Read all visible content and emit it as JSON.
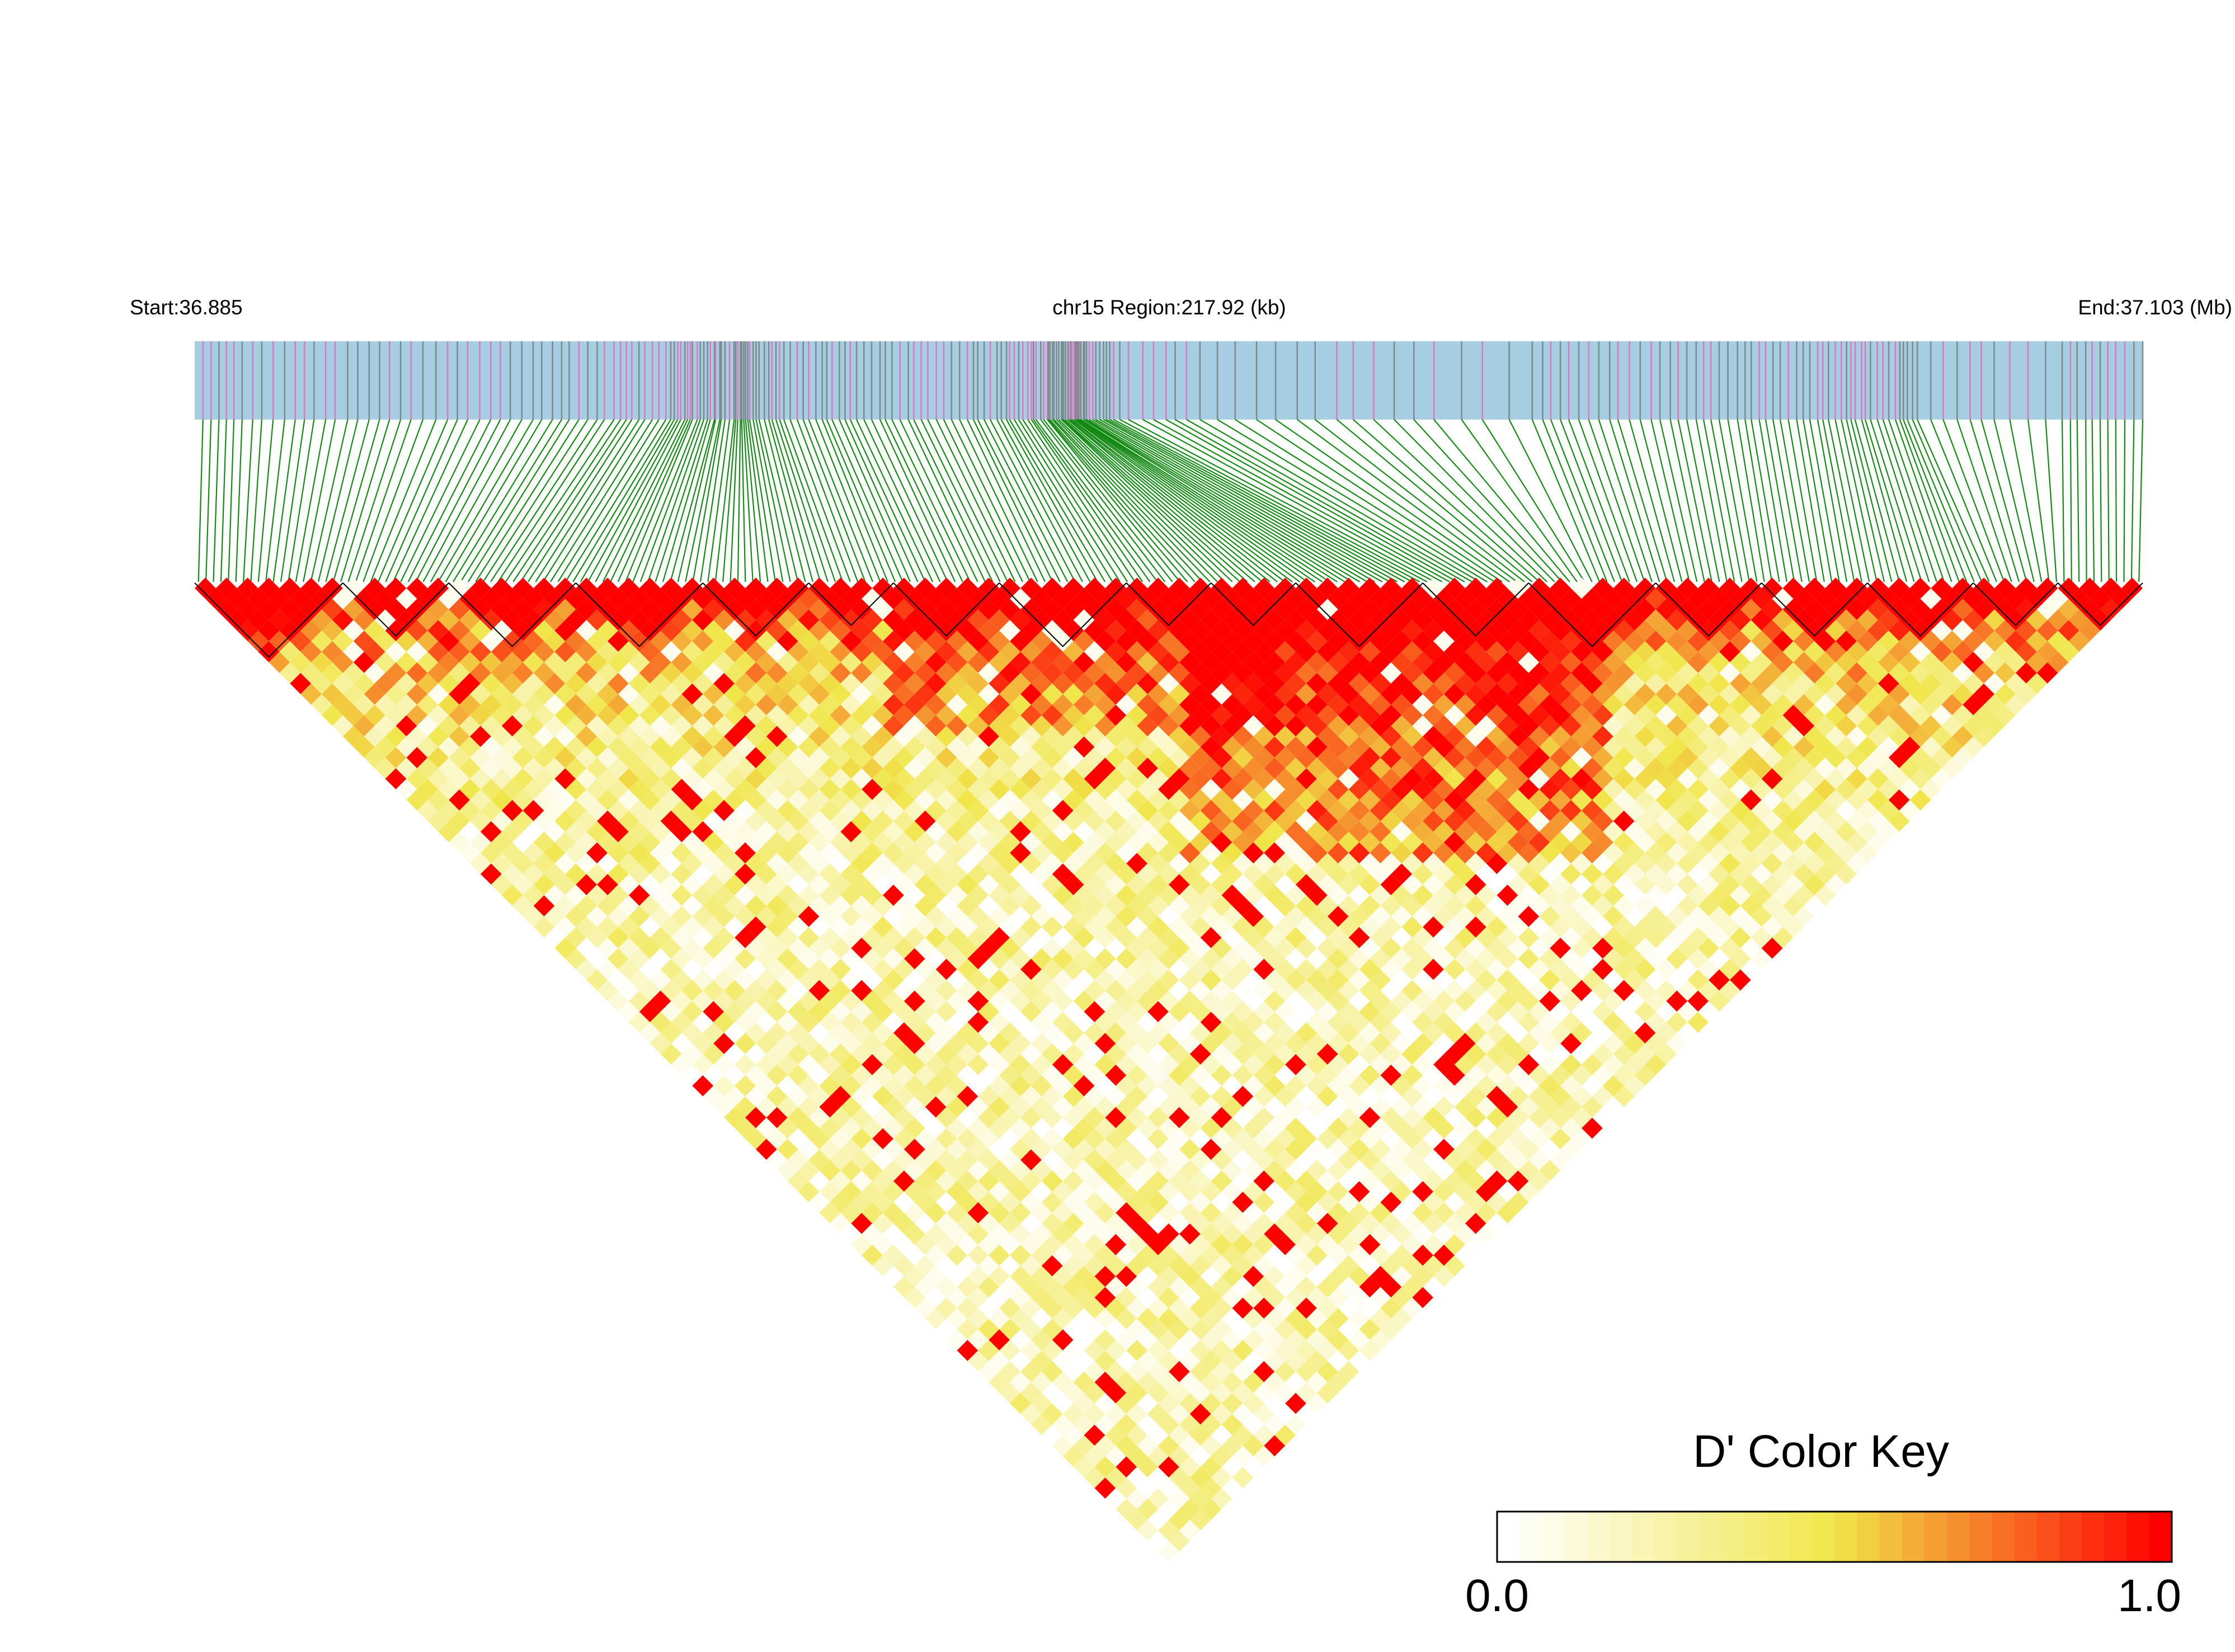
{
  "header": {
    "start_label": "Start:36.885",
    "region_label": "chr15 Region:217.92 (kb)",
    "end_label": "End:37.103 (Mb)"
  },
  "colors": {
    "track_background": "#a6cde2",
    "marker_gray": "#7f8c8d",
    "marker_pink": "#d87bc0",
    "connector_green": "#138a13",
    "block_outline": "#000000",
    "ld_low": "#ffffff",
    "ld_mid": "#f0e64a",
    "ld_high": "#ff0000"
  },
  "chart_data": {
    "type": "heatmap",
    "chromosome": "chr15",
    "region_start_mb": 36.885,
    "region_end_mb": 37.103,
    "region_length_kb": 217.92,
    "value_range": [
      0.0,
      1.0
    ],
    "color_key": {
      "title": "D' Color Key",
      "min_label": "0.0",
      "max_label": "1.0"
    }
  }
}
